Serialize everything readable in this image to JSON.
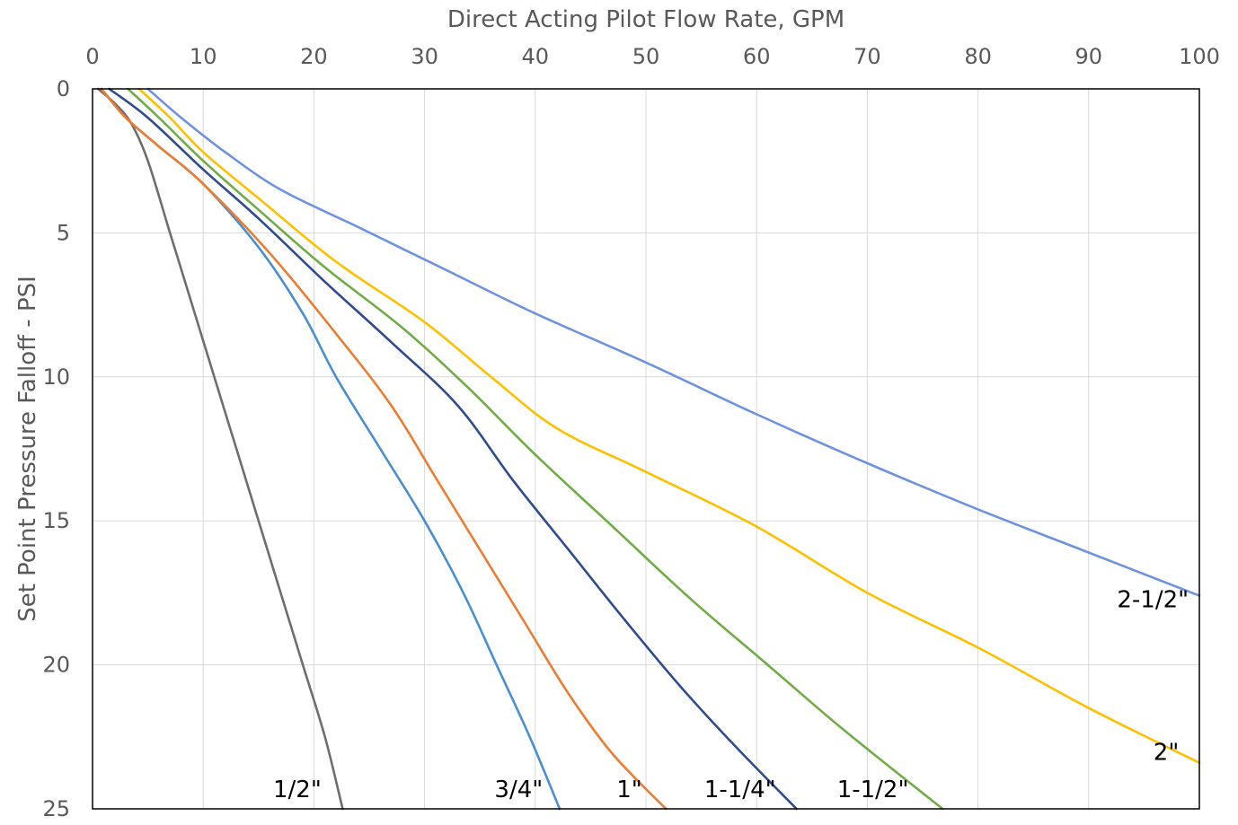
{
  "chart_data": {
    "type": "line",
    "title": "",
    "xlabel": "Direct Acting Pilot Flow Rate, GPM",
    "ylabel": "Set Point Pressure Falloff - PSI",
    "xlim": [
      0,
      100
    ],
    "ylim": [
      0,
      25
    ],
    "y_inverted": true,
    "x_axis_position": "top",
    "x_ticks": [
      0,
      10,
      20,
      30,
      40,
      50,
      60,
      70,
      80,
      90,
      100
    ],
    "y_ticks": [
      0,
      5,
      10,
      15,
      20,
      25
    ],
    "grid": true,
    "legend": "none",
    "series": [
      {
        "name": "1/2\"",
        "color": "#6e6e6e",
        "points": [
          [
            0.5,
            0
          ],
          [
            2,
            0.5
          ],
          [
            3.5,
            1.2
          ],
          [
            5,
            2.5
          ],
          [
            7,
            5
          ],
          [
            9,
            7.5
          ],
          [
            11,
            10
          ],
          [
            13,
            12.5
          ],
          [
            15,
            15
          ],
          [
            17,
            17.5
          ],
          [
            19,
            20
          ],
          [
            21,
            22.5
          ],
          [
            22.6,
            25
          ]
        ]
      },
      {
        "name": "3/4\"",
        "color": "#4a8fd0",
        "points": [
          [
            0.8,
            0
          ],
          [
            3,
            1
          ],
          [
            6,
            2
          ],
          [
            10,
            3.3
          ],
          [
            15,
            5.5
          ],
          [
            19,
            7.8
          ],
          [
            22,
            10
          ],
          [
            26,
            12.5
          ],
          [
            30,
            15
          ],
          [
            33.5,
            17.5
          ],
          [
            36.5,
            20
          ],
          [
            39.5,
            22.5
          ],
          [
            42.2,
            25
          ]
        ]
      },
      {
        "name": "1\"",
        "color": "#ed7d31",
        "points": [
          [
            0.8,
            0
          ],
          [
            3,
            1
          ],
          [
            6,
            2
          ],
          [
            10,
            3.3
          ],
          [
            16,
            5.7
          ],
          [
            22,
            8.5
          ],
          [
            27,
            11
          ],
          [
            31,
            13.5
          ],
          [
            35,
            16
          ],
          [
            39,
            18.5
          ],
          [
            43,
            21
          ],
          [
            47,
            23.1
          ],
          [
            51.8,
            25
          ]
        ]
      },
      {
        "name": "1-1/4\"",
        "color": "#2f4d8e",
        "points": [
          [
            1.5,
            0
          ],
          [
            5,
            1
          ],
          [
            10,
            2.8
          ],
          [
            15,
            4.5
          ],
          [
            21,
            6.7
          ],
          [
            27,
            8.8
          ],
          [
            33,
            11
          ],
          [
            38,
            13.6
          ],
          [
            43,
            16
          ],
          [
            48,
            18.4
          ],
          [
            53,
            20.7
          ],
          [
            58,
            22.8
          ],
          [
            63.6,
            25
          ]
        ]
      },
      {
        "name": "1-1/2\"",
        "color": "#70ad47",
        "points": [
          [
            3.2,
            0
          ],
          [
            6,
            1
          ],
          [
            10,
            2.5
          ],
          [
            15,
            4.2
          ],
          [
            21,
            6.2
          ],
          [
            28,
            8.3
          ],
          [
            34,
            10.4
          ],
          [
            40,
            12.7
          ],
          [
            47,
            15.2
          ],
          [
            54,
            17.7
          ],
          [
            61,
            20
          ],
          [
            68,
            22.3
          ],
          [
            76.8,
            25
          ]
        ]
      },
      {
        "name": "2\"",
        "color": "#ffc000",
        "points": [
          [
            4.2,
            0
          ],
          [
            7,
            1
          ],
          [
            10,
            2.2
          ],
          [
            15,
            3.8
          ],
          [
            22,
            6
          ],
          [
            30,
            8.1
          ],
          [
            36,
            10
          ],
          [
            42,
            11.8
          ],
          [
            50,
            13.3
          ],
          [
            60,
            15.2
          ],
          [
            70,
            17.5
          ],
          [
            80,
            19.4
          ],
          [
            90,
            21.5
          ],
          [
            100,
            23.4
          ]
        ]
      },
      {
        "name": "2-1/2\"",
        "color": "#6f93e0",
        "points": [
          [
            5,
            0
          ],
          [
            8,
            1
          ],
          [
            12,
            2.2
          ],
          [
            17,
            3.5
          ],
          [
            24,
            4.8
          ],
          [
            32,
            6.3
          ],
          [
            40,
            7.8
          ],
          [
            50,
            9.5
          ],
          [
            60,
            11.3
          ],
          [
            70,
            13
          ],
          [
            80,
            14.6
          ],
          [
            90,
            16.1
          ],
          [
            100,
            17.6
          ]
        ]
      }
    ],
    "annotations": [
      {
        "text": "1/2\"",
        "x": 18.5,
        "y": 24.6
      },
      {
        "text": "3/4\"",
        "x": 38.5,
        "y": 24.6
      },
      {
        "text": "1\"",
        "x": 48.5,
        "y": 24.6
      },
      {
        "text": "1-1/4\"",
        "x": 58.5,
        "y": 24.6
      },
      {
        "text": "1-1/2\"",
        "x": 70.5,
        "y": 24.6
      },
      {
        "text": "2\"",
        "x": 97.0,
        "y": 23.3
      },
      {
        "text": "2-1/2\"",
        "x": 95.8,
        "y": 18.0
      }
    ]
  }
}
